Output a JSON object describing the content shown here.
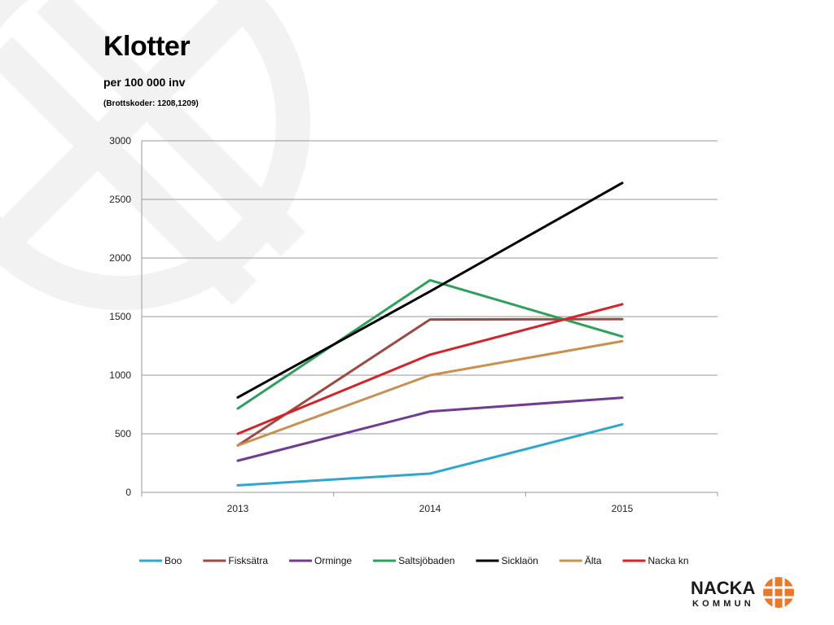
{
  "slide": {
    "title": "Klotter",
    "subtitle": "per 100 000 inv",
    "note": "(Brottskoder: 1208,1209)"
  },
  "logo": {
    "line1": "NACKA",
    "line2": "KOMMUN",
    "accent": "#E8792B"
  },
  "chart_data": {
    "type": "line",
    "title": "",
    "xlabel": "",
    "ylabel": "",
    "x": [
      "2013",
      "2014",
      "2015"
    ],
    "ylim": [
      0,
      3000
    ],
    "yticks": [
      0,
      500,
      1000,
      1500,
      2000,
      2500,
      3000
    ],
    "grid": true,
    "legend": "bottom",
    "series": [
      {
        "name": "Boo",
        "color": "#2EA6D0",
        "values": [
          60,
          160,
          580
        ]
      },
      {
        "name": "Fisksätra",
        "color": "#9B4A44",
        "values": [
          400,
          1475,
          1478
        ]
      },
      {
        "name": "Orminge",
        "color": "#713B8F",
        "values": [
          270,
          690,
          808
        ]
      },
      {
        "name": "Saltsjöbaden",
        "color": "#2FA05C",
        "values": [
          715,
          1810,
          1330
        ]
      },
      {
        "name": "Sicklaön",
        "color": "#000000",
        "values": [
          810,
          1715,
          2640
        ]
      },
      {
        "name": "Älta",
        "color": "#C9904F",
        "values": [
          400,
          1000,
          1290
        ]
      },
      {
        "name": "Nacka kn",
        "color": "#D4232A",
        "values": [
          500,
          1175,
          1605
        ]
      }
    ]
  }
}
